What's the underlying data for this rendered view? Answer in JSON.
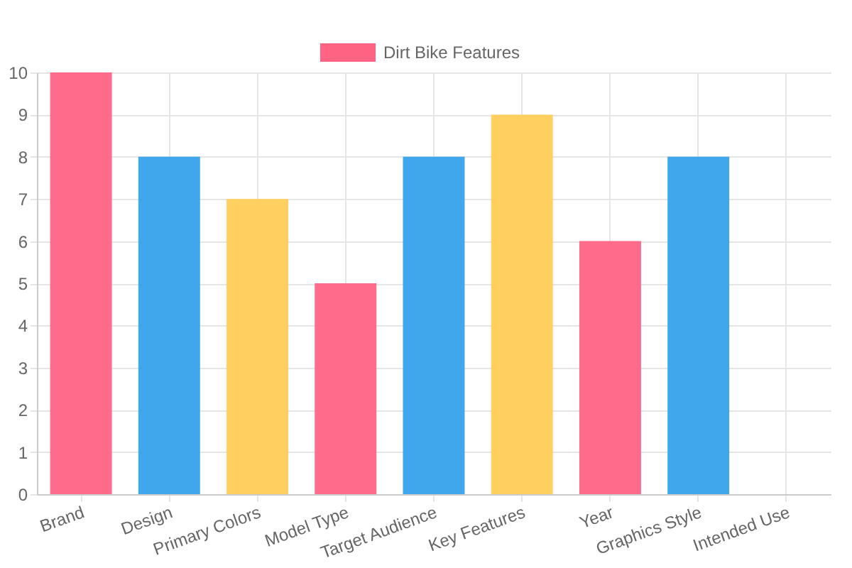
{
  "chart_data": {
    "type": "bar",
    "categories": [
      "Brand",
      "Design",
      "Primary Colors",
      "Model Type",
      "Target Audience",
      "Key Features",
      "Year",
      "Graphics Style",
      "Intended Use"
    ],
    "series": [
      {
        "name": "Dirt Bike Features",
        "values": [
          10,
          8,
          7,
          5,
          8,
          9,
          6,
          8,
          null
        ],
        "colors": [
          "#ff6384",
          "#36a2eb",
          "#ffcd56",
          "#ff6384",
          "#36a2eb",
          "#ffcd56",
          "#ff6384",
          "#36a2eb",
          "#ffcd56"
        ]
      }
    ],
    "ylim": [
      0,
      10
    ],
    "yticks": [
      0,
      1,
      2,
      3,
      4,
      5,
      6,
      7,
      8,
      9,
      10
    ],
    "grid": true,
    "legend": "top"
  }
}
